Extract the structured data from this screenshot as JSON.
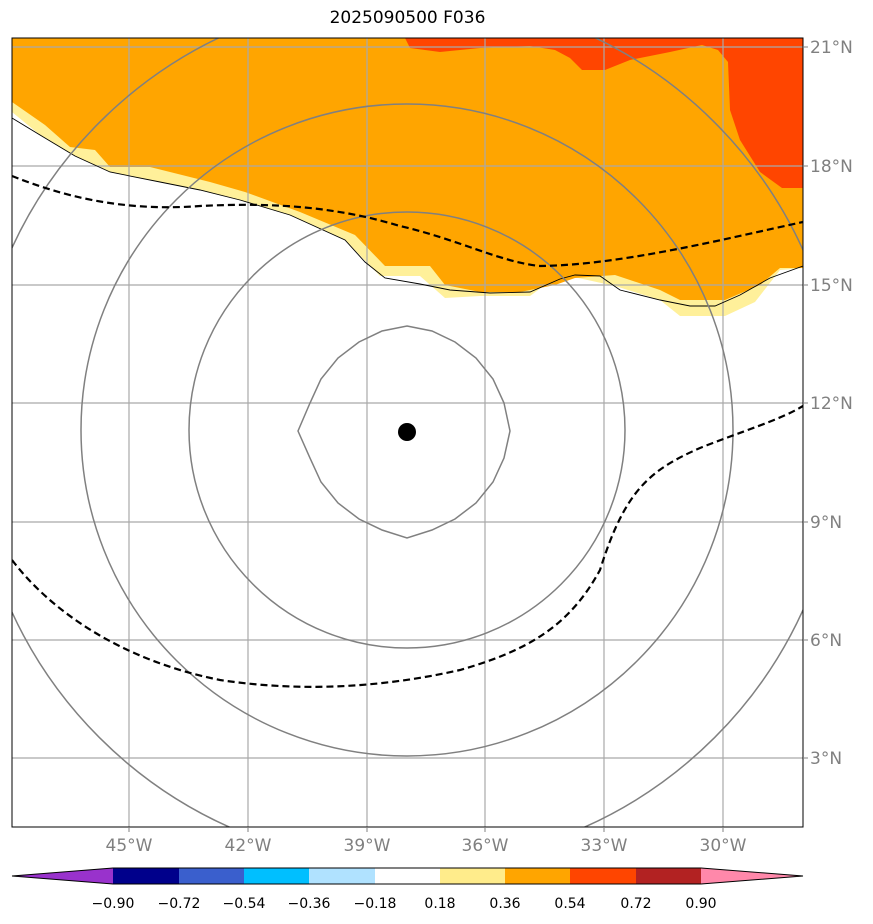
{
  "title": "2025090500 F036",
  "map": {
    "lat_labels": [
      "21°N",
      "18°N",
      "15°N",
      "12°N",
      "9°N",
      "6°N",
      "3°N"
    ],
    "lon_labels": [
      "45°W",
      "42°W",
      "39°W",
      "36°W",
      "33°W",
      "30°W"
    ],
    "center_marker": {
      "lon": -38.0,
      "lat": 11.3
    }
  },
  "colorbar": {
    "ticks": [
      "−0.90",
      "−0.72",
      "−0.54",
      "−0.36",
      "−0.18",
      "0.18",
      "0.36",
      "0.54",
      "0.72",
      "0.90"
    ],
    "colors": [
      "#9932cc",
      "#00008b",
      "#3a5fcd",
      "#00bfff",
      "#b0e2ff",
      "#ffffff",
      "#ffec8b",
      "#ffa500",
      "#ff4500",
      "#b22222",
      "#ff88aa"
    ]
  }
}
